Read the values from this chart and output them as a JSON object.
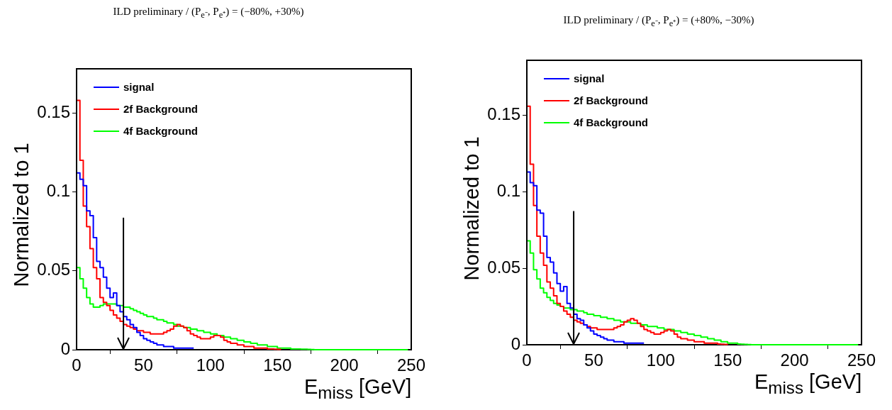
{
  "chart_data": [
    {
      "type": "step",
      "title": "ILD preliminary / (P$_{e⁻}$, P$_{e⁺}$) = (−80%, +30%)",
      "xlabel": "E$_{miss}$ [GeV]",
      "ylabel": "Normalized to 1",
      "x": [
        0,
        2.5,
        5,
        7.5,
        10,
        12.5,
        15,
        17.5,
        20,
        22.5,
        25,
        27.5,
        30,
        32.5,
        35,
        37.5,
        40,
        42.5,
        45,
        47.5,
        50,
        52.5,
        55,
        57.5,
        60,
        62.5,
        65,
        67.5,
        70,
        72.5,
        75,
        77.5,
        80,
        82.5,
        85,
        87.5,
        90,
        92.5,
        95,
        97.5,
        100,
        102.5,
        105,
        107.5,
        110,
        112.5,
        115,
        117.5,
        120,
        122.5,
        125,
        127.5,
        130,
        132.5,
        135,
        137.5,
        140,
        142.5,
        145,
        147.5,
        150,
        152.5,
        155,
        157.5,
        160,
        162.5,
        165,
        167.5,
        170,
        172.5,
        175,
        177.5,
        180,
        182.5,
        185,
        187.5,
        190,
        192.5,
        195,
        197.5,
        200,
        202.5,
        205,
        207.5,
        210,
        212.5,
        215,
        217.5,
        220,
        222.5,
        225,
        227.5,
        230,
        232.5,
        235,
        237.5,
        240,
        242.5,
        245,
        247.5
      ],
      "series": [
        {
          "name": "signal",
          "color": "#0000ff",
          "values": [
            0.112,
            0.108,
            0.104,
            0.088,
            0.085,
            0.071,
            0.056,
            0.052,
            0.046,
            0.039,
            0.033,
            0.036,
            0.028,
            0.024,
            0.021,
            0.019,
            0.016,
            0.014,
            0.011,
            0.009,
            0.007,
            0.006,
            0.005,
            0.004,
            0.003,
            0.003,
            0.002,
            0.002,
            0.002,
            0.001,
            0.001,
            0.001,
            0.001,
            0.001,
            0.001,
            0.001,
            null,
            null,
            null,
            null,
            null,
            null,
            null,
            null,
            null,
            null,
            null,
            null,
            null,
            null,
            null,
            null,
            null,
            null,
            null,
            null,
            null,
            null,
            null,
            null,
            null,
            null,
            null,
            null,
            null,
            null,
            null,
            null,
            null,
            null,
            null,
            null,
            null,
            null,
            null,
            null,
            null,
            null,
            null,
            null,
            null,
            null,
            null,
            null,
            null,
            null,
            null,
            null,
            null,
            null,
            null,
            null,
            null,
            null,
            null,
            null,
            null,
            null,
            null,
            null
          ]
        },
        {
          "name": "2f Background",
          "color": "#ff0000",
          "values": [
            0.158,
            0.12,
            0.091,
            0.078,
            0.064,
            0.052,
            0.045,
            0.033,
            0.03,
            0.028,
            0.025,
            0.022,
            0.02,
            0.018,
            0.016,
            0.015,
            0.014,
            0.013,
            0.012,
            0.012,
            0.011,
            0.011,
            0.01,
            0.01,
            0.01,
            0.01,
            0.011,
            0.012,
            0.013,
            0.015,
            0.016,
            0.015,
            0.014,
            0.012,
            0.01,
            0.009,
            0.008,
            0.007,
            0.007,
            0.007,
            0.008,
            0.009,
            0.009,
            0.008,
            0.006,
            0.005,
            0.004,
            0.004,
            0.003,
            0.003,
            0.002,
            0.002,
            0.002,
            0.001,
            0.001,
            0.001,
            0.001,
            0.0005,
            0.0005,
            0.0003,
            0.0002,
            0.0001,
            null,
            null,
            null,
            null,
            null,
            null,
            null,
            null,
            null,
            null,
            null,
            null,
            null,
            null,
            null,
            null,
            null,
            null,
            null,
            null,
            null,
            null,
            null,
            null,
            null,
            null,
            null,
            null,
            null,
            null,
            null,
            null,
            null,
            null,
            null,
            null,
            null,
            null
          ]
        },
        {
          "name": "4f Background",
          "color": "#00ff00",
          "values": [
            0.052,
            0.045,
            0.039,
            0.033,
            0.029,
            0.027,
            0.027,
            0.028,
            0.029,
            0.029,
            0.029,
            0.029,
            0.028,
            0.028,
            0.027,
            0.027,
            0.026,
            0.025,
            0.024,
            0.023,
            0.022,
            0.021,
            0.021,
            0.02,
            0.019,
            0.019,
            0.018,
            0.017,
            0.017,
            0.016,
            0.015,
            0.015,
            0.014,
            0.014,
            0.013,
            0.013,
            0.012,
            0.012,
            0.011,
            0.011,
            0.01,
            0.01,
            0.009,
            0.009,
            0.008,
            0.008,
            0.007,
            0.007,
            0.006,
            0.006,
            0.005,
            0.005,
            0.004,
            0.004,
            0.003,
            0.003,
            0.003,
            0.002,
            0.002,
            0.002,
            0.001,
            0.001,
            0.001,
            0.001,
            0.0005,
            0.0005,
            0.0005,
            0.0003,
            0.0003,
            0.0002,
            0.0001,
            0,
            0,
            0,
            0,
            0,
            0,
            0,
            0,
            0,
            0,
            0,
            0,
            0,
            0,
            0,
            0,
            0,
            0,
            0,
            0,
            0,
            0,
            0,
            0,
            0,
            0,
            0,
            0,
            0
          ]
        }
      ],
      "xlim": [
        0,
        250
      ],
      "xticks": [
        0,
        50,
        100,
        150,
        200,
        250
      ],
      "ylim": [
        0,
        0.178
      ],
      "yticks": [
        0,
        0.05,
        0.1,
        0.15
      ],
      "legend": "top left",
      "ref_lines": [
        {
          "axis": "x",
          "value": 35
        }
      ]
    },
    {
      "type": "step",
      "title": "ILD preliminary / (P$_{e⁻}$, P$_{e⁺}$) = (+80%, −30%)",
      "xlabel": "E$_{miss}$ [GeV]",
      "ylabel": "Normalized to 1",
      "x": [
        0,
        2.5,
        5,
        7.5,
        10,
        12.5,
        15,
        17.5,
        20,
        22.5,
        25,
        27.5,
        30,
        32.5,
        35,
        37.5,
        40,
        42.5,
        45,
        47.5,
        50,
        52.5,
        55,
        57.5,
        60,
        62.5,
        65,
        67.5,
        70,
        72.5,
        75,
        77.5,
        80,
        82.5,
        85,
        87.5,
        90,
        92.5,
        95,
        97.5,
        100,
        102.5,
        105,
        107.5,
        110,
        112.5,
        115,
        117.5,
        120,
        122.5,
        125,
        127.5,
        130,
        132.5,
        135,
        137.5,
        140,
        142.5,
        145,
        147.5,
        150,
        152.5,
        155,
        157.5,
        160,
        162.5,
        165,
        167.5,
        170,
        172.5,
        175,
        177.5,
        180,
        182.5,
        185,
        187.5,
        190,
        192.5,
        195,
        197.5,
        200,
        202.5,
        205,
        207.5,
        210,
        212.5,
        215,
        217.5,
        220,
        222.5,
        225,
        227.5,
        230,
        232.5,
        235,
        237.5,
        240,
        242.5,
        245,
        247.5
      ],
      "series": [
        {
          "name": "signal",
          "color": "#0000ff",
          "values": [
            0.113,
            0.106,
            0.104,
            0.088,
            0.086,
            0.071,
            0.057,
            0.054,
            0.047,
            0.04,
            0.035,
            0.038,
            0.027,
            0.024,
            0.02,
            0.017,
            0.016,
            0.013,
            0.011,
            0.009,
            0.007,
            0.006,
            0.005,
            0.004,
            0.003,
            0.003,
            0.002,
            0.002,
            0.002,
            0.001,
            0.001,
            0.001,
            0.001,
            0.001,
            0.001,
            0.001,
            null,
            null,
            null,
            null,
            null,
            null,
            null,
            null,
            null,
            null,
            null,
            null,
            null,
            null,
            null,
            null,
            null,
            null,
            null,
            null,
            null,
            null,
            null,
            null,
            null,
            null,
            null,
            null,
            null,
            null,
            null,
            null,
            null,
            null,
            null,
            null,
            null,
            null,
            null,
            null,
            null,
            null,
            null,
            null,
            null,
            null,
            null,
            null,
            null,
            null,
            null,
            null,
            null,
            null,
            null,
            null,
            null,
            null,
            null,
            null,
            null,
            null,
            null,
            null
          ]
        },
        {
          "name": "2f Background",
          "color": "#ff0000",
          "values": [
            0.156,
            0.118,
            0.091,
            0.071,
            0.06,
            0.052,
            0.041,
            0.037,
            0.032,
            0.027,
            0.025,
            0.022,
            0.02,
            0.018,
            0.016,
            0.015,
            0.014,
            0.013,
            0.012,
            0.011,
            0.011,
            0.01,
            0.01,
            0.01,
            0.01,
            0.01,
            0.011,
            0.012,
            0.013,
            0.015,
            0.016,
            0.017,
            0.016,
            0.014,
            0.012,
            0.01,
            0.009,
            0.008,
            0.007,
            0.007,
            0.008,
            0.009,
            0.01,
            0.009,
            0.007,
            0.005,
            0.004,
            0.004,
            0.003,
            0.003,
            0.002,
            0.002,
            0.002,
            0.001,
            0.001,
            0.001,
            0.001,
            0.0005,
            0.0003,
            0.0002,
            0.0001,
            null,
            null,
            null,
            null,
            null,
            null,
            null,
            null,
            null,
            null,
            null,
            null,
            null,
            null,
            null,
            null,
            null,
            null,
            null,
            null,
            null,
            null,
            null,
            null,
            null,
            null,
            null,
            null,
            null,
            null,
            null,
            null,
            null,
            null,
            null,
            null,
            null,
            null,
            null
          ]
        },
        {
          "name": "4f Background",
          "color": "#00ff00",
          "values": [
            0.068,
            0.06,
            0.049,
            0.043,
            0.037,
            0.034,
            0.031,
            0.029,
            0.027,
            0.026,
            0.025,
            0.024,
            0.024,
            0.023,
            0.023,
            0.022,
            0.022,
            0.021,
            0.02,
            0.02,
            0.019,
            0.019,
            0.018,
            0.018,
            0.017,
            0.017,
            0.016,
            0.016,
            0.015,
            0.015,
            0.015,
            0.014,
            0.014,
            0.014,
            0.013,
            0.013,
            0.012,
            0.012,
            0.012,
            0.011,
            0.011,
            0.01,
            0.01,
            0.01,
            0.009,
            0.009,
            0.008,
            0.008,
            0.007,
            0.007,
            0.006,
            0.006,
            0.005,
            0.005,
            0.004,
            0.004,
            0.003,
            0.003,
            0.002,
            0.002,
            0.001,
            0.001,
            0.001,
            0.0005,
            0.0003,
            0.0002,
            0.0001,
            0,
            0,
            0,
            0,
            0,
            0,
            0,
            0,
            0,
            0,
            0,
            0,
            0,
            0,
            0,
            0,
            0,
            0,
            0,
            0,
            0,
            0,
            0,
            0,
            0,
            0,
            0,
            0,
            0,
            0,
            0,
            0,
            0
          ]
        }
      ],
      "xlim": [
        0,
        250
      ],
      "xticks": [
        0,
        50,
        100,
        150,
        200,
        250
      ],
      "ylim": [
        0,
        0.186
      ],
      "yticks": [
        0,
        0.05,
        0.1,
        0.15
      ],
      "legend": "top left",
      "ref_lines": [
        {
          "axis": "x",
          "value": 35
        }
      ]
    }
  ]
}
